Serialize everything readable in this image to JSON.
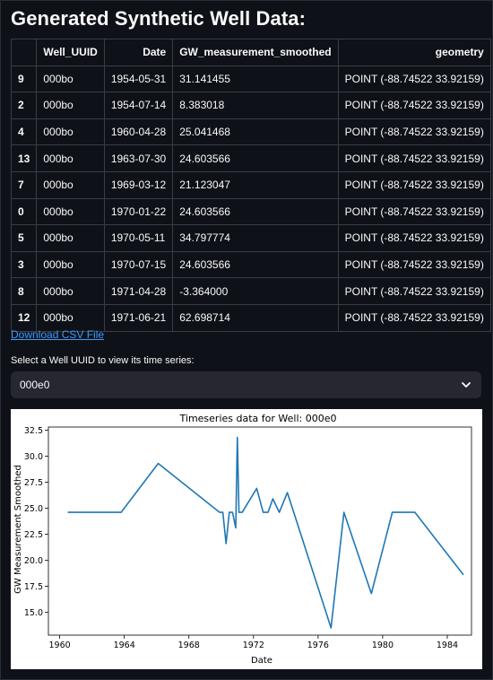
{
  "page": {
    "title": "Generated Synthetic Well Data:",
    "download_label": "Download CSV File",
    "select_label": "Select a Well UUID to view its time series:",
    "select_value": "000e0"
  },
  "table": {
    "columns": [
      "",
      "Well_UUID",
      "Date",
      "GW_measurement_smoothed",
      "geometry"
    ],
    "rows": [
      [
        "9",
        "000bo",
        "1954-05-31",
        "31.141455",
        "POINT (-88.74522 33.92159)"
      ],
      [
        "2",
        "000bo",
        "1954-07-14",
        "8.383018",
        "POINT (-88.74522 33.92159)"
      ],
      [
        "4",
        "000bo",
        "1960-04-28",
        "25.041468",
        "POINT (-88.74522 33.92159)"
      ],
      [
        "13",
        "000bo",
        "1963-07-30",
        "24.603566",
        "POINT (-88.74522 33.92159)"
      ],
      [
        "7",
        "000bo",
        "1969-03-12",
        "21.123047",
        "POINT (-88.74522 33.92159)"
      ],
      [
        "0",
        "000bo",
        "1970-01-22",
        "24.603566",
        "POINT (-88.74522 33.92159)"
      ],
      [
        "5",
        "000bo",
        "1970-05-11",
        "34.797774",
        "POINT (-88.74522 33.92159)"
      ],
      [
        "3",
        "000bo",
        "1970-07-15",
        "24.603566",
        "POINT (-88.74522 33.92159)"
      ],
      [
        "8",
        "000bo",
        "1971-04-28",
        "-3.364000",
        "POINT (-88.74522 33.92159)"
      ],
      [
        "12",
        "000bo",
        "1971-06-21",
        "62.698714",
        "POINT (-88.74522 33.92159)"
      ]
    ]
  },
  "chart_data": {
    "type": "line",
    "title": "Timeseries data for Well: 000e0",
    "xlabel": "Date",
    "ylabel": "GW Measurement Smoothed",
    "xlim": [
      1959.3,
      1985.5
    ],
    "ylim": [
      12.8,
      32.8
    ],
    "xticks": [
      1960,
      1964,
      1968,
      1972,
      1976,
      1980,
      1984
    ],
    "yticks": [
      15.0,
      17.5,
      20.0,
      22.5,
      25.0,
      27.5,
      30.0,
      32.5
    ],
    "series_color": "#1f77b4",
    "x": [
      1960.5,
      1963.8,
      1966.1,
      1969.9,
      1970.1,
      1970.3,
      1970.5,
      1970.7,
      1970.9,
      1971.0,
      1971.1,
      1971.3,
      1972.2,
      1972.6,
      1972.9,
      1973.2,
      1973.6,
      1974.1,
      1976.8,
      1977.6,
      1979.3,
      1980.6,
      1982.0,
      1985.0
    ],
    "values": [
      24.6,
      24.6,
      29.3,
      24.6,
      24.6,
      21.6,
      24.6,
      24.6,
      23.1,
      31.8,
      24.6,
      24.6,
      26.9,
      24.6,
      24.6,
      25.9,
      24.6,
      26.5,
      13.5,
      24.6,
      16.8,
      24.6,
      24.6,
      18.6
    ]
  }
}
